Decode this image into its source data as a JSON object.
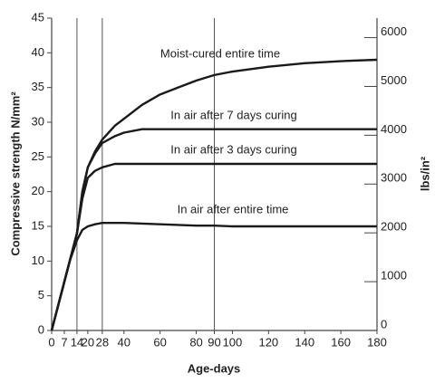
{
  "chart_data": {
    "type": "line",
    "x_label": "Age-days",
    "y_label": "Compressive strength N/mm²",
    "y2_label": "lbs/in²",
    "x": [
      0,
      3,
      7,
      10,
      14,
      17,
      20,
      24,
      28,
      35,
      40,
      50,
      60,
      70,
      80,
      90,
      100,
      120,
      140,
      160,
      180
    ],
    "series": [
      {
        "name": "Moist-cured entire time",
        "color": "#1a1a1a",
        "values": [
          0,
          3,
          7,
          10,
          14,
          20,
          23.5,
          25.8,
          27.5,
          29.5,
          30.5,
          32.5,
          34,
          35,
          36,
          36.8,
          37.3,
          38,
          38.5,
          38.8,
          39
        ]
      },
      {
        "name": "In air after 7 days curing",
        "color": "#1a1a1a",
        "values": [
          0,
          3,
          7,
          10,
          14,
          20,
          23.5,
          25.5,
          27,
          28,
          28.5,
          29,
          29,
          29,
          29,
          29,
          29,
          29,
          29,
          29,
          29
        ]
      },
      {
        "name": "In air after 3 days curing",
        "color": "#1a1a1a",
        "values": [
          0,
          3,
          7,
          10,
          14,
          19,
          22,
          23,
          23.5,
          24,
          24,
          24,
          24,
          24,
          24,
          24,
          24,
          24,
          24,
          24,
          24
        ]
      },
      {
        "name": "In air after entire time",
        "color": "#1a1a1a",
        "values": [
          0,
          3,
          7,
          10,
          13,
          14.5,
          15,
          15.3,
          15.5,
          15.5,
          15.5,
          15.4,
          15.3,
          15.2,
          15.1,
          15.1,
          15,
          15,
          15,
          15,
          15
        ]
      }
    ],
    "xlim": [
      0,
      180
    ],
    "xticks": [
      0,
      7,
      14,
      20,
      28,
      40,
      60,
      80,
      90,
      100,
      120,
      140,
      160,
      180
    ],
    "ylim": [
      0,
      45
    ],
    "yticks": [
      0,
      5,
      10,
      15,
      20,
      25,
      30,
      35,
      40,
      45
    ],
    "y2lim": [
      0,
      6400
    ],
    "y2ticks": [
      0,
      1000,
      2000,
      3000,
      4000,
      5000,
      6000
    ],
    "vlines": [
      14,
      28,
      90
    ]
  }
}
